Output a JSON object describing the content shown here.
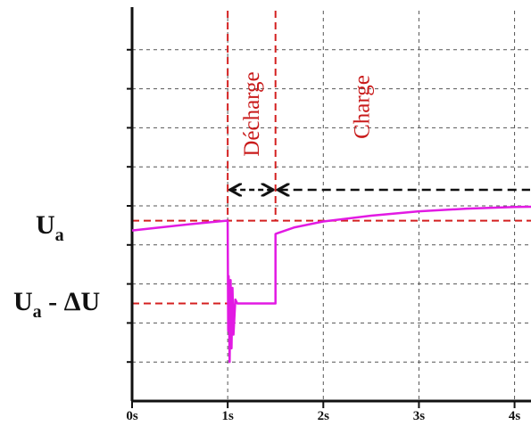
{
  "chart_data": {
    "type": "line",
    "title": "",
    "xlabel": "",
    "ylabel": "",
    "xlim": [
      0,
      4.2
    ],
    "ylim": [
      0,
      10
    ],
    "grid": true,
    "x_ticks": [
      0,
      1,
      2,
      3,
      4
    ],
    "x_tick_labels": [
      "0s",
      "1s",
      "2s",
      "3s",
      "4s"
    ],
    "y_grid_values": [
      1,
      2,
      3,
      4,
      5,
      6,
      7,
      8,
      9
    ],
    "series": [
      {
        "color": "#e21ae3",
        "x": [
          0,
          0.3,
          0.6,
          0.9,
          0.99,
          1.0,
          1.005,
          1.01,
          1.02,
          1.03,
          1.04,
          1.05,
          1.06,
          1.08,
          1.1,
          1.3,
          1.5,
          1.5,
          1.52,
          1.7,
          2.0,
          2.5,
          3.0,
          3.5,
          4.0,
          4.2
        ],
        "y": [
          4.37,
          4.45,
          4.53,
          4.6,
          4.62,
          4.62,
          1.8,
          3.2,
          1.0,
          3.1,
          1.35,
          2.9,
          1.7,
          2.6,
          2.5,
          2.5,
          2.5,
          4.28,
          4.3,
          4.45,
          4.6,
          4.75,
          4.86,
          4.93,
          4.97,
          4.98
        ]
      }
    ],
    "reference_lines": {
      "color": "#d42020",
      "levels": [
        {
          "y": 4.62,
          "x_from": 0,
          "x_to": 4.2,
          "label_main": "U",
          "label_sub": "a",
          "label_suffix": ""
        },
        {
          "y": 2.5,
          "x_from": 0,
          "x_to": 1.0,
          "label_main": "U",
          "label_sub": "a",
          "label_suffix": " - ΔU"
        }
      ],
      "verticals": [
        1.0,
        1.5
      ]
    },
    "phases": [
      {
        "label": "Décharge",
        "x_from": 1.0,
        "x_to": 1.5,
        "arrow_color": "#111111"
      },
      {
        "label": "Charge",
        "x_from": 1.5,
        "x_to": 4.2,
        "arrow_color": "#111111"
      }
    ]
  }
}
